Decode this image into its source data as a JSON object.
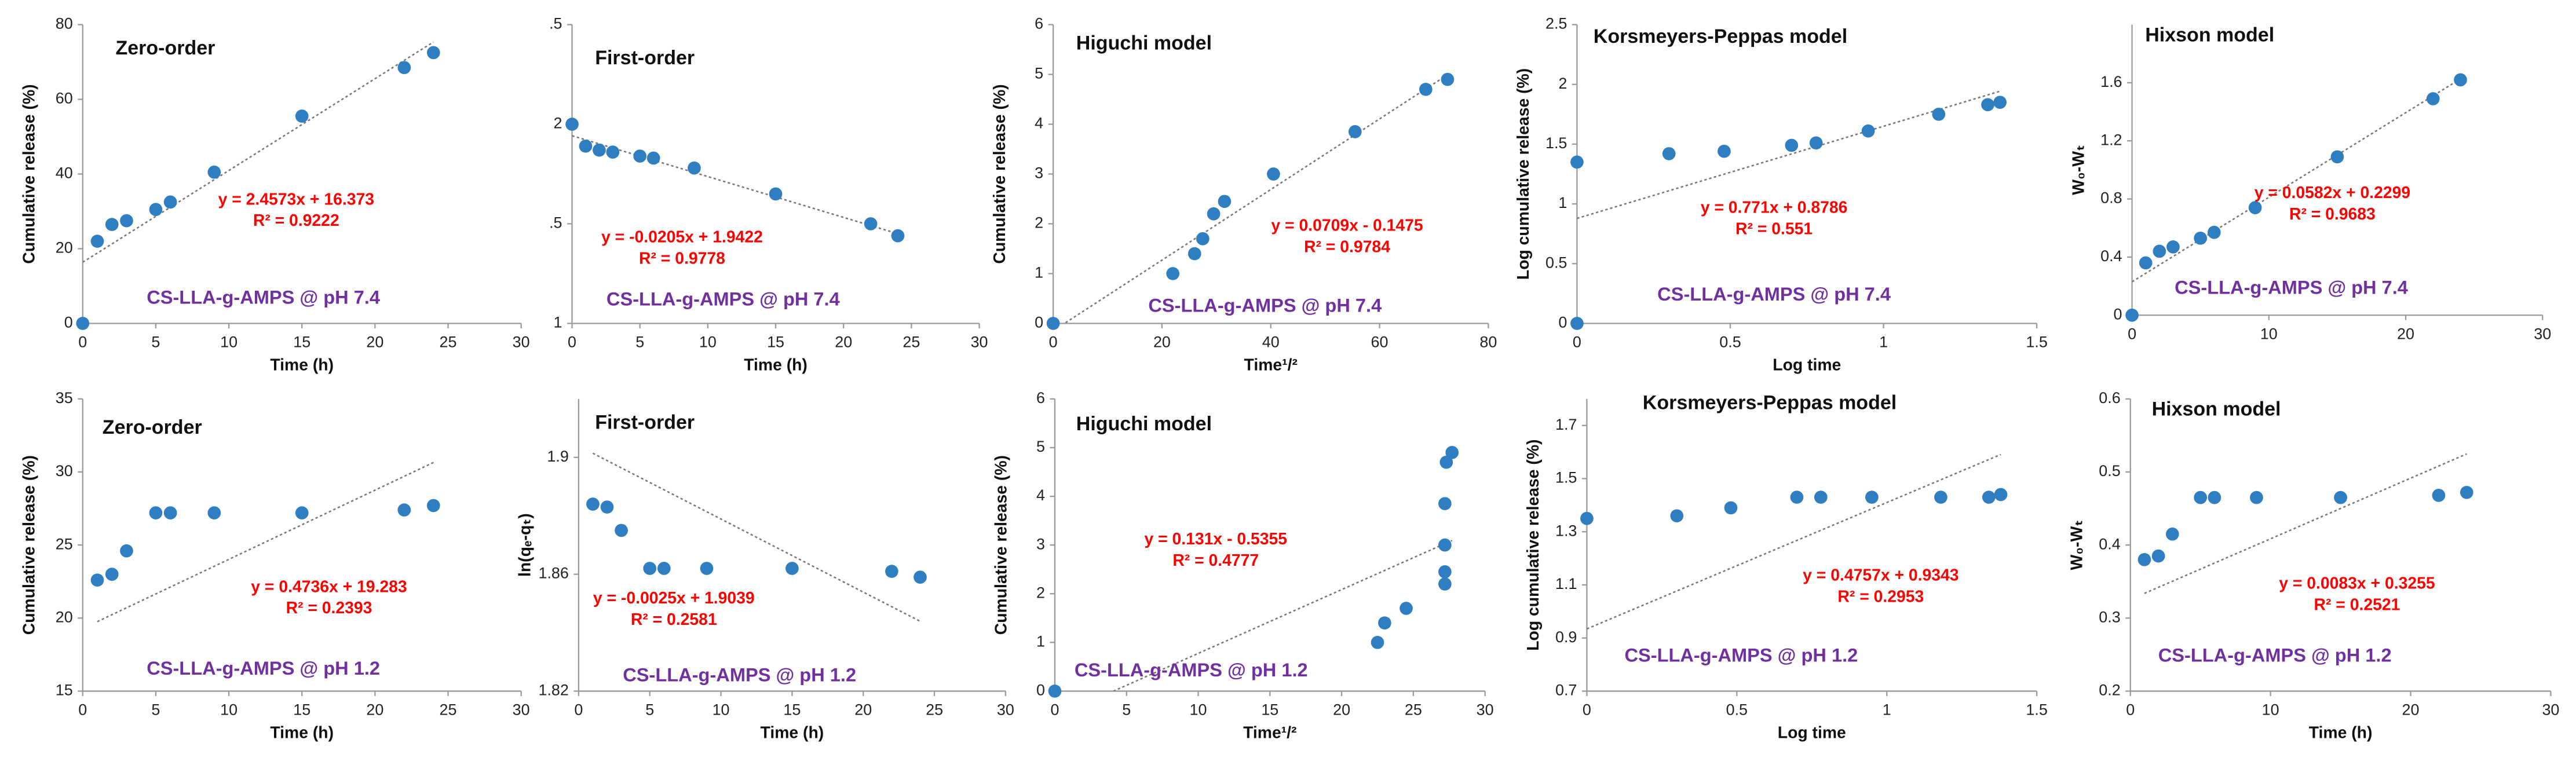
{
  "chart_data": [
    {
      "type": "scatter",
      "title": "Zero-order",
      "x_label": "Time (h)",
      "y_label": "Cumulative release (%)",
      "equation": "y = 2.4573x + 16.373",
      "r_squared": "R² = 0.9222",
      "note": "CS-LLA-g-AMPS @ pH 7.4",
      "color": "#2e7ec1",
      "x": [
        0,
        1,
        2,
        3,
        5,
        6,
        9,
        15,
        22,
        24
      ],
      "values": [
        0,
        22,
        26.5,
        27.5,
        30.5,
        32.5,
        40.5,
        55.5,
        68.5,
        72.5
      ],
      "trendline": {
        "slope": 2.4573,
        "intercept": 16.373
      },
      "xlim": [
        0,
        30
      ],
      "xticks": [
        0,
        5,
        10,
        15,
        20,
        25,
        30
      ],
      "ylim": [
        0,
        80
      ],
      "yticks": [
        0,
        20,
        40,
        60,
        80
      ]
    },
    {
      "type": "scatter",
      "title": "First-order",
      "x_label": "Time (h)",
      "y_label": "",
      "equation": "y = -0.0205x + 1.9422",
      "r_squared": "R² = 0.9778",
      "note": "CS-LLA-g-AMPS @ pH 7.4",
      "color": "#2e7ec1",
      "x": [
        0,
        1,
        2,
        3,
        5,
        6,
        9,
        15,
        22,
        24
      ],
      "values": [
        2.0,
        1.89,
        1.87,
        1.86,
        1.84,
        1.83,
        1.78,
        1.65,
        1.5,
        1.44
      ],
      "trendline": {
        "slope": -0.0205,
        "intercept": 1.9422
      },
      "xlim": [
        0,
        30
      ],
      "xticks": [
        0,
        5,
        10,
        15,
        20,
        25,
        30
      ],
      "ylim": [
        1,
        2.5
      ],
      "yticks": [
        1,
        {
          "value": 1.5,
          "label": ".5"
        },
        2,
        {
          "value": 2.5,
          "label": ".5"
        }
      ]
    },
    {
      "type": "scatter",
      "title": "Higuchi model",
      "x_label": "Time¹/²",
      "y_label": "Cumulative release (%)",
      "equation": "y = 0.0709x - 0.1475",
      "r_squared": "R² = 0.9784",
      "note": "CS-LLA-g-AMPS @ pH 7.4",
      "color": "#2e7ec1",
      "x": [
        0,
        22,
        26,
        27.5,
        29.5,
        31.5,
        40.5,
        55.5,
        68.5,
        72.5
      ],
      "values": [
        0,
        1.0,
        1.4,
        1.7,
        2.2,
        2.45,
        3.0,
        3.85,
        4.7,
        4.9
      ],
      "trendline": {
        "slope": 0.0709,
        "intercept": -0.1475
      },
      "xlim": [
        0,
        80
      ],
      "xticks": [
        0,
        20,
        40,
        60,
        80
      ],
      "ylim": [
        0,
        6
      ],
      "yticks": [
        0,
        1,
        2,
        3,
        4,
        5,
        6
      ]
    },
    {
      "type": "scatter",
      "title": "Korsmeyers-Peppas model",
      "x_label": "Log time",
      "y_label": "Log cumulative release (%)",
      "equation": "y = 0.771x + 0.8786",
      "r_squared": "R² = 0.551",
      "note": "CS-LLA-g-AMPS @ pH 7.4",
      "color": "#2e7ec1",
      "x": [
        0,
        0,
        0.3,
        0.48,
        0.7,
        0.78,
        0.95,
        1.18,
        1.34,
        1.38
      ],
      "values": [
        0,
        1.35,
        1.42,
        1.44,
        1.49,
        1.51,
        1.61,
        1.75,
        1.83,
        1.85
      ],
      "trendline": {
        "slope": 0.771,
        "intercept": 0.8786
      },
      "xlim": [
        0,
        1.5
      ],
      "xticks": [
        0,
        0.5,
        1,
        1.5
      ],
      "ylim": [
        0,
        2.5
      ],
      "yticks": [
        0,
        0.5,
        1,
        1.5,
        2,
        2.5
      ]
    },
    {
      "type": "scatter",
      "title": "Hixson model",
      "x_label": "",
      "y_label": "W₀-Wₜ",
      "equation": "y = 0.0582x + 0.2299",
      "r_squared": "R² = 0.9683",
      "note": "CS-LLA-g-AMPS @ pH 7.4",
      "color": "#2e7ec1",
      "x": [
        0,
        1,
        2,
        3,
        5,
        6,
        9,
        15,
        22,
        24
      ],
      "values": [
        0,
        0.36,
        0.44,
        0.47,
        0.53,
        0.57,
        0.74,
        1.09,
        1.49,
        1.62
      ],
      "trendline": {
        "slope": 0.0582,
        "intercept": 0.2299
      },
      "xlim": [
        0,
        30
      ],
      "xticks": [
        0,
        10,
        20,
        30
      ],
      "ylim": [
        0,
        2
      ],
      "yticks": [
        0,
        0.4,
        0.8,
        1.2,
        1.6
      ]
    },
    {
      "type": "scatter",
      "title": "Zero-order",
      "x_label": "Time (h)",
      "y_label": "Cumulative release (%)",
      "equation": "y = 0.4736x + 19.283",
      "r_squared": "R² = 0.2393",
      "note": "CS-LLA-g-AMPS @ pH 1.2",
      "color": "#2e7ec1",
      "x": [
        1,
        2,
        3,
        5,
        6,
        9,
        15,
        22,
        24
      ],
      "values": [
        22.6,
        23,
        24.6,
        27.2,
        27.2,
        27.2,
        27.2,
        27.4,
        27.7
      ],
      "trendline": {
        "slope": 0.4736,
        "intercept": 19.283
      },
      "xlim": [
        0,
        30
      ],
      "xticks": [
        0,
        5,
        10,
        15,
        20,
        25,
        30
      ],
      "ylim": [
        15,
        35
      ],
      "yticks": [
        15,
        20,
        25,
        30,
        35
      ]
    },
    {
      "type": "scatter",
      "title": "First-order",
      "x_label": "Time (h)",
      "y_label": "ln(qₑ-qₜ)",
      "equation": "y = -0.0025x + 1.9039",
      "r_squared": "R² = 0.2581",
      "note": "CS-LLA-g-AMPS @ pH 1.2",
      "color": "#2e7ec1",
      "x": [
        1,
        2,
        3,
        5,
        6,
        9,
        15,
        22,
        24
      ],
      "values": [
        1.884,
        1.883,
        1.875,
        1.862,
        1.862,
        1.862,
        1.862,
        1.861,
        1.859
      ],
      "trendline": {
        "slope": -0.0025,
        "intercept": 1.9039
      },
      "xlim": [
        0,
        30
      ],
      "xticks": [
        0,
        5,
        10,
        15,
        20,
        25,
        30
      ],
      "ylim": [
        1.82,
        1.92
      ],
      "yticks": [
        1.82,
        1.86,
        1.9
      ]
    },
    {
      "type": "scatter",
      "title": "Higuchi model",
      "x_label": "Time¹/²",
      "y_label": "Cumulative release (%)",
      "equation": "y = 0.131x - 0.5355",
      "r_squared": "R² = 0.4777",
      "note": "CS-LLA-g-AMPS @ pH 1.2",
      "color": "#2e7ec1",
      "x": [
        0,
        22.5,
        23,
        24.5,
        27.2,
        27.2,
        27.2,
        27.2,
        27.3,
        27.7
      ],
      "values": [
        0,
        1.0,
        1.4,
        1.7,
        2.2,
        2.45,
        3.0,
        3.85,
        4.7,
        4.9
      ],
      "trendline": {
        "slope": 0.131,
        "intercept": -0.5355
      },
      "xlim": [
        0,
        30
      ],
      "xticks": [
        0,
        5,
        10,
        15,
        20,
        25,
        30
      ],
      "ylim": [
        0,
        6
      ],
      "yticks": [
        0,
        1,
        2,
        3,
        4,
        5,
        6
      ]
    },
    {
      "type": "scatter",
      "title": "Korsmeyers-Peppas model",
      "x_label": "Log time",
      "y_label": "Log cumulative release (%)",
      "equation": "y = 0.4757x + 0.9343",
      "r_squared": "R² = 0.2953",
      "note": "CS-LLA-g-AMPS @ pH 1.2",
      "color": "#2e7ec1",
      "x": [
        0,
        0.3,
        0.48,
        0.7,
        0.78,
        0.95,
        1.18,
        1.34,
        1.38
      ],
      "values": [
        1.35,
        1.36,
        1.39,
        1.43,
        1.43,
        1.43,
        1.43,
        1.43,
        1.44
      ],
      "trendline": {
        "slope": 0.4757,
        "intercept": 0.9343
      },
      "xlim": [
        0,
        1.5
      ],
      "xticks": [
        0,
        0.5,
        1,
        1.5
      ],
      "ylim": [
        0.7,
        1.8
      ],
      "yticks": [
        0.7,
        0.9,
        1.1,
        1.3,
        1.5,
        1.7
      ]
    },
    {
      "type": "scatter",
      "title": "Hixson model",
      "x_label": "Time (h)",
      "y_label": "W₀-Wₜ",
      "equation": "y = 0.0083x + 0.3255",
      "r_squared": "R² = 0.2521",
      "note": "CS-LLA-g-AMPS @ pH 1.2",
      "color": "#2e7ec1",
      "x": [
        1,
        2,
        3,
        5,
        6,
        9,
        15,
        22,
        24
      ],
      "values": [
        0.38,
        0.385,
        0.415,
        0.465,
        0.465,
        0.465,
        0.465,
        0.468,
        0.472
      ],
      "trendline": {
        "slope": 0.0083,
        "intercept": 0.3255
      },
      "xlim": [
        0,
        30
      ],
      "xticks": [
        0,
        10,
        20,
        30
      ],
      "ylim": [
        0.2,
        0.6
      ],
      "yticks": [
        0.2,
        0.3,
        0.4,
        0.5,
        0.6
      ]
    }
  ]
}
